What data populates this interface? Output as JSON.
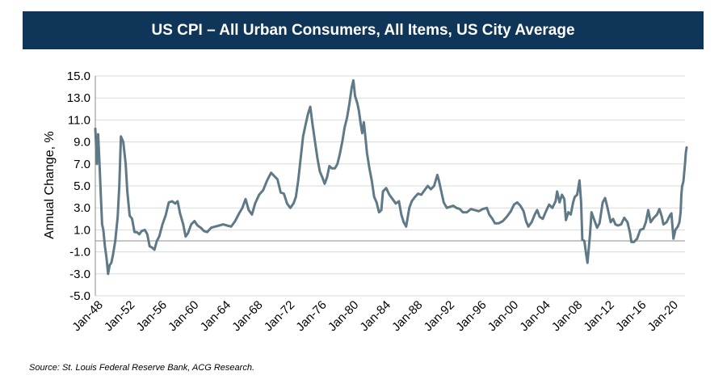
{
  "chart_data": {
    "type": "line",
    "title": "US CPI – All Urban Consumers, All Items, US City Average",
    "xlabel": "",
    "ylabel": "Annual Change, %",
    "ylim": [
      -5,
      15
    ],
    "xlim": [
      1948.0,
      2021.8
    ],
    "yticks": [
      "15.0",
      "13.0",
      "11.0",
      "9.0",
      "7.0",
      "5.0",
      "3.0",
      "1.0",
      "-1.0",
      "-3.0",
      "-5.0"
    ],
    "xticks": [
      "Jan-48",
      "Jan-52",
      "Jan-56",
      "Jan-60",
      "Jan-64",
      "Jan-68",
      "Jan-72",
      "Jan-76",
      "Jan-80",
      "Jan-84",
      "Jan-88",
      "Jan-92",
      "Jan-96",
      "Jan-00",
      "Jan-04",
      "Jan-08",
      "Jan-12",
      "Jan-16",
      "Jan-20"
    ],
    "grid": true,
    "legend": "none",
    "line_color": "#5f7987",
    "series": [
      {
        "name": "US CPI Annual Change",
        "points": [
          [
            1948.0,
            10.2
          ],
          [
            1948.2,
            7.0
          ],
          [
            1948.35,
            9.7
          ],
          [
            1948.5,
            7.5
          ],
          [
            1948.7,
            4.0
          ],
          [
            1948.85,
            1.5
          ],
          [
            1949.0,
            1.0
          ],
          [
            1949.2,
            -0.5
          ],
          [
            1949.4,
            -1.5
          ],
          [
            1949.6,
            -3.0
          ],
          [
            1949.8,
            -2.2
          ],
          [
            1950.0,
            -2.0
          ],
          [
            1950.2,
            -1.3
          ],
          [
            1950.5,
            0.0
          ],
          [
            1950.8,
            2.2
          ],
          [
            1951.0,
            5.0
          ],
          [
            1951.2,
            9.5
          ],
          [
            1951.5,
            9.0
          ],
          [
            1951.8,
            7.0
          ],
          [
            1952.0,
            4.5
          ],
          [
            1952.3,
            2.3
          ],
          [
            1952.6,
            2.0
          ],
          [
            1952.9,
            0.8
          ],
          [
            1953.2,
            0.8
          ],
          [
            1953.5,
            0.6
          ],
          [
            1953.8,
            0.9
          ],
          [
            1954.2,
            1.0
          ],
          [
            1954.5,
            0.6
          ],
          [
            1954.8,
            -0.5
          ],
          [
            1955.1,
            -0.6
          ],
          [
            1955.4,
            -0.8
          ],
          [
            1955.7,
            0.0
          ],
          [
            1956.0,
            0.4
          ],
          [
            1956.4,
            1.5
          ],
          [
            1956.8,
            2.3
          ],
          [
            1957.2,
            3.5
          ],
          [
            1957.6,
            3.6
          ],
          [
            1958.0,
            3.4
          ],
          [
            1958.3,
            3.6
          ],
          [
            1958.6,
            2.5
          ],
          [
            1959.0,
            1.5
          ],
          [
            1959.3,
            0.4
          ],
          [
            1959.6,
            0.7
          ],
          [
            1960.0,
            1.5
          ],
          [
            1960.4,
            1.8
          ],
          [
            1960.8,
            1.4
          ],
          [
            1961.2,
            1.2
          ],
          [
            1961.6,
            0.9
          ],
          [
            1962.0,
            0.8
          ],
          [
            1962.5,
            1.2
          ],
          [
            1963.0,
            1.3
          ],
          [
            1963.5,
            1.4
          ],
          [
            1964.0,
            1.5
          ],
          [
            1964.5,
            1.4
          ],
          [
            1965.0,
            1.3
          ],
          [
            1965.5,
            1.8
          ],
          [
            1966.0,
            2.5
          ],
          [
            1966.4,
            3.0
          ],
          [
            1966.8,
            3.8
          ],
          [
            1967.2,
            2.8
          ],
          [
            1967.6,
            2.4
          ],
          [
            1968.0,
            3.4
          ],
          [
            1968.5,
            4.2
          ],
          [
            1969.0,
            4.6
          ],
          [
            1969.5,
            5.5
          ],
          [
            1970.0,
            6.2
          ],
          [
            1970.4,
            5.9
          ],
          [
            1970.8,
            5.6
          ],
          [
            1971.2,
            4.4
          ],
          [
            1971.6,
            4.3
          ],
          [
            1972.0,
            3.4
          ],
          [
            1972.4,
            3.0
          ],
          [
            1972.8,
            3.4
          ],
          [
            1973.1,
            4.0
          ],
          [
            1973.4,
            5.5
          ],
          [
            1973.7,
            7.5
          ],
          [
            1974.0,
            9.5
          ],
          [
            1974.3,
            10.5
          ],
          [
            1974.6,
            11.5
          ],
          [
            1974.9,
            12.2
          ],
          [
            1975.2,
            10.5
          ],
          [
            1975.5,
            9.0
          ],
          [
            1975.8,
            7.5
          ],
          [
            1976.1,
            6.3
          ],
          [
            1976.4,
            5.8
          ],
          [
            1976.7,
            5.2
          ],
          [
            1977.0,
            5.8
          ],
          [
            1977.3,
            6.8
          ],
          [
            1977.6,
            6.6
          ],
          [
            1978.0,
            6.6
          ],
          [
            1978.3,
            7.0
          ],
          [
            1978.6,
            7.9
          ],
          [
            1978.9,
            9.0
          ],
          [
            1979.2,
            10.3
          ],
          [
            1979.5,
            11.2
          ],
          [
            1979.8,
            12.5
          ],
          [
            1980.1,
            14.0
          ],
          [
            1980.3,
            14.6
          ],
          [
            1980.5,
            13.2
          ],
          [
            1980.8,
            12.5
          ],
          [
            1981.0,
            11.8
          ],
          [
            1981.2,
            10.7
          ],
          [
            1981.4,
            9.8
          ],
          [
            1981.6,
            10.8
          ],
          [
            1981.8,
            9.5
          ],
          [
            1982.0,
            8.0
          ],
          [
            1982.3,
            6.6
          ],
          [
            1982.6,
            5.5
          ],
          [
            1982.9,
            4.0
          ],
          [
            1983.2,
            3.5
          ],
          [
            1983.5,
            2.6
          ],
          [
            1983.8,
            2.8
          ],
          [
            1984.0,
            4.5
          ],
          [
            1984.4,
            4.8
          ],
          [
            1984.8,
            4.2
          ],
          [
            1985.2,
            3.8
          ],
          [
            1985.6,
            3.4
          ],
          [
            1986.0,
            3.6
          ],
          [
            1986.3,
            2.4
          ],
          [
            1986.6,
            1.7
          ],
          [
            1986.9,
            1.3
          ],
          [
            1987.3,
            3.0
          ],
          [
            1987.6,
            3.6
          ],
          [
            1988.0,
            4.0
          ],
          [
            1988.4,
            4.3
          ],
          [
            1988.8,
            4.2
          ],
          [
            1989.2,
            4.6
          ],
          [
            1989.6,
            5.0
          ],
          [
            1990.0,
            4.7
          ],
          [
            1990.4,
            5.0
          ],
          [
            1990.8,
            6.0
          ],
          [
            1991.0,
            5.5
          ],
          [
            1991.3,
            4.5
          ],
          [
            1991.6,
            3.5
          ],
          [
            1992.0,
            3.0
          ],
          [
            1992.4,
            3.1
          ],
          [
            1992.8,
            3.2
          ],
          [
            1993.2,
            3.0
          ],
          [
            1993.6,
            2.9
          ],
          [
            1994.0,
            2.6
          ],
          [
            1994.5,
            2.6
          ],
          [
            1995.0,
            2.9
          ],
          [
            1995.5,
            2.8
          ],
          [
            1996.0,
            2.7
          ],
          [
            1996.5,
            2.9
          ],
          [
            1997.0,
            3.0
          ],
          [
            1997.3,
            2.4
          ],
          [
            1997.7,
            2.0
          ],
          [
            1998.0,
            1.6
          ],
          [
            1998.5,
            1.6
          ],
          [
            1999.0,
            1.8
          ],
          [
            1999.5,
            2.2
          ],
          [
            2000.0,
            2.7
          ],
          [
            2000.4,
            3.3
          ],
          [
            2000.8,
            3.5
          ],
          [
            2001.2,
            3.2
          ],
          [
            2001.6,
            2.7
          ],
          [
            2001.9,
            1.8
          ],
          [
            2002.2,
            1.3
          ],
          [
            2002.6,
            1.7
          ],
          [
            2003.0,
            2.4
          ],
          [
            2003.3,
            2.8
          ],
          [
            2003.6,
            2.2
          ],
          [
            2004.0,
            2.0
          ],
          [
            2004.4,
            2.7
          ],
          [
            2004.8,
            3.3
          ],
          [
            2005.2,
            3.0
          ],
          [
            2005.6,
            3.6
          ],
          [
            2005.8,
            4.5
          ],
          [
            2006.1,
            3.5
          ],
          [
            2006.4,
            4.2
          ],
          [
            2006.7,
            3.8
          ],
          [
            2006.9,
            1.9
          ],
          [
            2007.2,
            2.6
          ],
          [
            2007.5,
            2.4
          ],
          [
            2007.8,
            3.5
          ],
          [
            2008.0,
            4.0
          ],
          [
            2008.3,
            4.2
          ],
          [
            2008.6,
            5.5
          ],
          [
            2008.8,
            3.5
          ],
          [
            2008.95,
            0.1
          ],
          [
            2009.2,
            0.0
          ],
          [
            2009.45,
            -1.3
          ],
          [
            2009.6,
            -2.0
          ],
          [
            2009.9,
            0.5
          ],
          [
            2010.1,
            2.6
          ],
          [
            2010.4,
            2.0
          ],
          [
            2010.8,
            1.2
          ],
          [
            2011.1,
            1.6
          ],
          [
            2011.5,
            3.5
          ],
          [
            2011.8,
            3.9
          ],
          [
            2012.1,
            3.0
          ],
          [
            2012.5,
            1.7
          ],
          [
            2012.8,
            2.0
          ],
          [
            2013.1,
            1.5
          ],
          [
            2013.4,
            1.4
          ],
          [
            2013.8,
            1.5
          ],
          [
            2014.2,
            2.1
          ],
          [
            2014.6,
            1.7
          ],
          [
            2014.9,
            0.8
          ],
          [
            2015.1,
            -0.1
          ],
          [
            2015.4,
            -0.1
          ],
          [
            2015.8,
            0.2
          ],
          [
            2016.2,
            1.0
          ],
          [
            2016.6,
            1.1
          ],
          [
            2016.9,
            1.7
          ],
          [
            2017.2,
            2.8
          ],
          [
            2017.5,
            1.7
          ],
          [
            2017.9,
            2.1
          ],
          [
            2018.3,
            2.4
          ],
          [
            2018.6,
            2.9
          ],
          [
            2018.9,
            2.2
          ],
          [
            2019.1,
            1.5
          ],
          [
            2019.5,
            1.7
          ],
          [
            2019.9,
            2.3
          ],
          [
            2020.1,
            2.5
          ],
          [
            2020.35,
            0.2
          ],
          [
            2020.6,
            1.0
          ],
          [
            2020.9,
            1.3
          ],
          [
            2021.1,
            1.7
          ],
          [
            2021.25,
            2.6
          ],
          [
            2021.35,
            4.2
          ],
          [
            2021.45,
            5.0
          ],
          [
            2021.6,
            5.4
          ],
          [
            2021.7,
            6.2
          ],
          [
            2021.8,
            7.0
          ],
          [
            2021.9,
            8.0
          ],
          [
            2022.0,
            8.5
          ]
        ]
      }
    ]
  },
  "footer": {
    "source": "Source: St. Louis Federal Reserve Bank, ACG Research."
  }
}
